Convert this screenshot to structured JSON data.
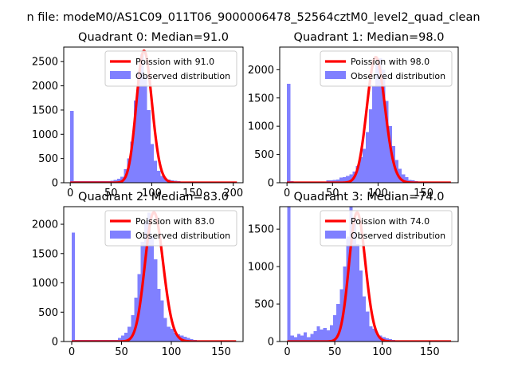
{
  "figure": {
    "suptitle": "n file: modeM0/AS1C09_011T06_9000006478_52564cztM0_level2_quad_clean"
  },
  "colors": {
    "poisson": "#ff0000",
    "observed": "#8080ff",
    "axis": "#000000",
    "legend_border": "#cccccc"
  },
  "chart_data": [
    {
      "type": "bar",
      "title": "Quadrant 0: Median=91.0",
      "median": 91.0,
      "xlim": [
        -8,
        212
      ],
      "ylim": [
        0,
        2800
      ],
      "xticks": [
        0,
        50,
        100,
        150,
        200
      ],
      "yticks": [
        0,
        500,
        1000,
        1500,
        2000,
        2500
      ],
      "legend": [
        "Poission with 91.0",
        "Observed distribution"
      ],
      "legend_loc": "upper right",
      "hist": {
        "bin_width": 4.1,
        "values": [
          1480,
          30,
          30,
          30,
          30,
          30,
          30,
          30,
          30,
          30,
          30,
          30,
          40,
          60,
          80,
          120,
          280,
          500,
          850,
          1700,
          2300,
          2650,
          2200,
          1500,
          800,
          450,
          250,
          140,
          90,
          70,
          50,
          40,
          30,
          20,
          10,
          5,
          5,
          5,
          5,
          5,
          5,
          5,
          5,
          5,
          5,
          5,
          5,
          5,
          5,
          5
        ]
      },
      "poisson": {
        "mu": 91.0,
        "scale": 2720
      }
    },
    {
      "type": "bar",
      "title": "Quadrant 1: Median=98.0",
      "median": 98.0,
      "xlim": [
        -8,
        188
      ],
      "ylim": [
        0,
        2400
      ],
      "xticks": [
        0,
        50,
        100,
        150
      ],
      "yticks": [
        0,
        500,
        1000,
        1500,
        2000
      ],
      "legend": [
        "Poission with 98.0",
        "Observed distribution"
      ],
      "legend_loc": "upper right",
      "hist": {
        "bin_width": 3.6,
        "values": [
          1750,
          30,
          20,
          20,
          20,
          20,
          20,
          20,
          20,
          20,
          20,
          20,
          40,
          40,
          50,
          60,
          90,
          100,
          120,
          150,
          200,
          300,
          450,
          600,
          900,
          1300,
          1700,
          2100,
          2200,
          2000,
          1450,
          1000,
          650,
          400,
          250,
          150,
          100,
          50,
          40,
          30,
          20,
          10,
          10,
          5,
          5,
          5,
          5,
          5,
          5,
          5
        ]
      },
      "poisson": {
        "mu": 98.0,
        "scale": 2220
      }
    },
    {
      "type": "bar",
      "title": "Quadrant 2: Median=83.0",
      "median": 83.0,
      "xlim": [
        -8,
        172
      ],
      "ylim": [
        0,
        2300
      ],
      "xticks": [
        0,
        50,
        100,
        150
      ],
      "yticks": [
        0,
        500,
        1000,
        1500,
        2000
      ],
      "legend": [
        "Poission with 83.0",
        "Observed distribution"
      ],
      "legend_loc": "upper right",
      "hist": {
        "bin_width": 3.3,
        "values": [
          1860,
          30,
          30,
          30,
          30,
          30,
          30,
          30,
          30,
          30,
          30,
          30,
          30,
          30,
          60,
          100,
          150,
          250,
          450,
          750,
          1150,
          1700,
          2050,
          2200,
          1800,
          1400,
          900,
          700,
          400,
          250,
          220,
          150,
          120,
          100,
          80,
          60,
          40,
          30,
          20,
          10,
          5,
          5,
          5,
          5,
          5,
          5,
          5,
          5,
          5,
          5
        ]
      },
      "poisson": {
        "mu": 83.0,
        "scale": 2200
      }
    },
    {
      "type": "bar",
      "title": "Quadrant 3: Median=74.0",
      "median": 74.0,
      "xlim": [
        -8,
        180
      ],
      "ylim": [
        0,
        1800
      ],
      "xticks": [
        0,
        50,
        100,
        150
      ],
      "yticks": [
        0,
        500,
        1000,
        1500
      ],
      "legend": [
        "Poission with 74.0",
        "Observed distribution"
      ],
      "legend_loc": "upper right",
      "hist": {
        "bin_width": 3.45,
        "values": [
          1800,
          80,
          60,
          100,
          80,
          120,
          60,
          100,
          140,
          200,
          160,
          180,
          150,
          220,
          350,
          500,
          700,
          1000,
          1400,
          1800,
          1650,
          1300,
          950,
          600,
          400,
          200,
          170,
          100,
          80,
          60,
          40,
          30,
          20,
          10,
          5,
          5,
          5,
          5,
          5,
          5,
          5,
          5,
          5,
          5,
          5,
          5,
          5,
          5,
          5,
          5
        ]
      },
      "poisson": {
        "mu": 74.0,
        "scale": 1720
      }
    }
  ]
}
